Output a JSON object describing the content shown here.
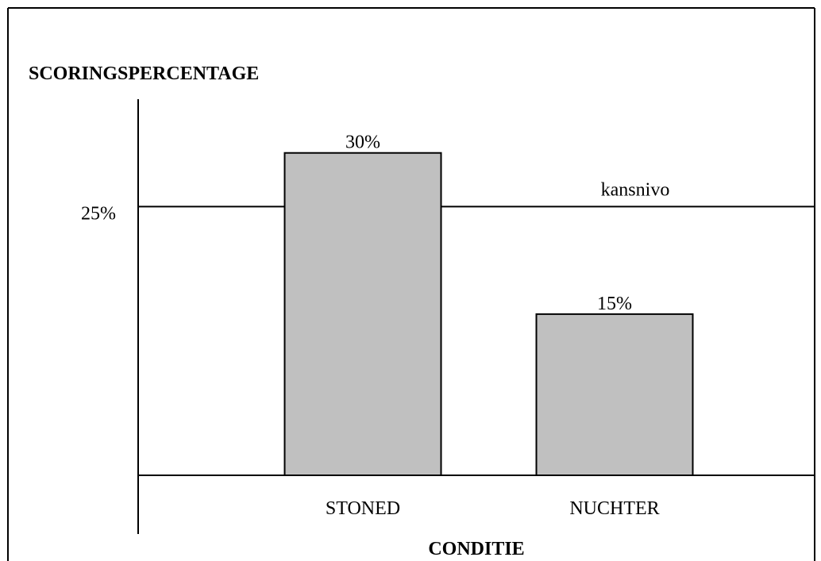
{
  "chart_data": {
    "type": "bar",
    "y_label": "SCORINGSPERCENTAGE",
    "x_label": "CONDITIE",
    "categories": [
      "STONED",
      "NUCHTER"
    ],
    "values": [
      30,
      15
    ],
    "value_labels": [
      "30%",
      "15%"
    ],
    "color": "#c0c0c0",
    "ylim": [
      0,
      35
    ],
    "yticks": [
      {
        "value": 25,
        "label": "25%"
      }
    ],
    "grid": true,
    "annotations": [
      {
        "text": "kansnivo",
        "value": 25
      }
    ]
  }
}
